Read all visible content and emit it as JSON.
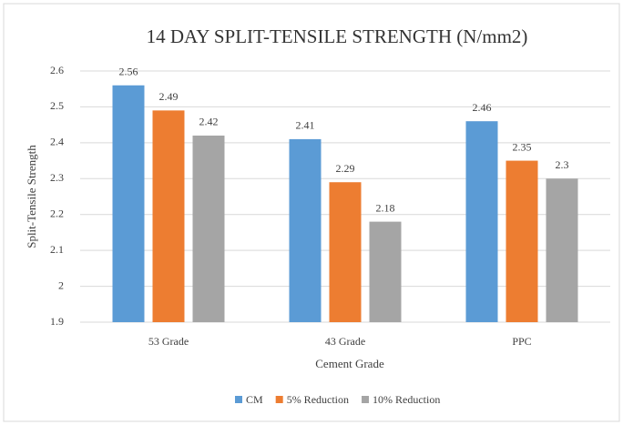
{
  "chart_data": {
    "type": "bar",
    "title": "14 DAY SPLIT-TENSILE STRENGTH (N/mm2)",
    "x_label": "Cement Grade",
    "y_label": "Split-Tensile Strength",
    "categories": [
      "53 Grade",
      "43 Grade",
      "PPC"
    ],
    "series": [
      {
        "name": "CM",
        "color": "#5b9bd5",
        "values": [
          2.56,
          2.41,
          2.46
        ]
      },
      {
        "name": "5% Reduction",
        "color": "#ed7d31",
        "values": [
          2.49,
          2.29,
          2.35
        ]
      },
      {
        "name": "10% Reduction",
        "color": "#a5a5a5",
        "values": [
          2.42,
          2.18,
          2.3
        ]
      }
    ],
    "ylim": [
      1.9,
      2.6
    ],
    "yticks": [
      1.9,
      2,
      2.1,
      2.2,
      2.3,
      2.4,
      2.5,
      2.6
    ],
    "grid": true,
    "legend": "bottom"
  }
}
